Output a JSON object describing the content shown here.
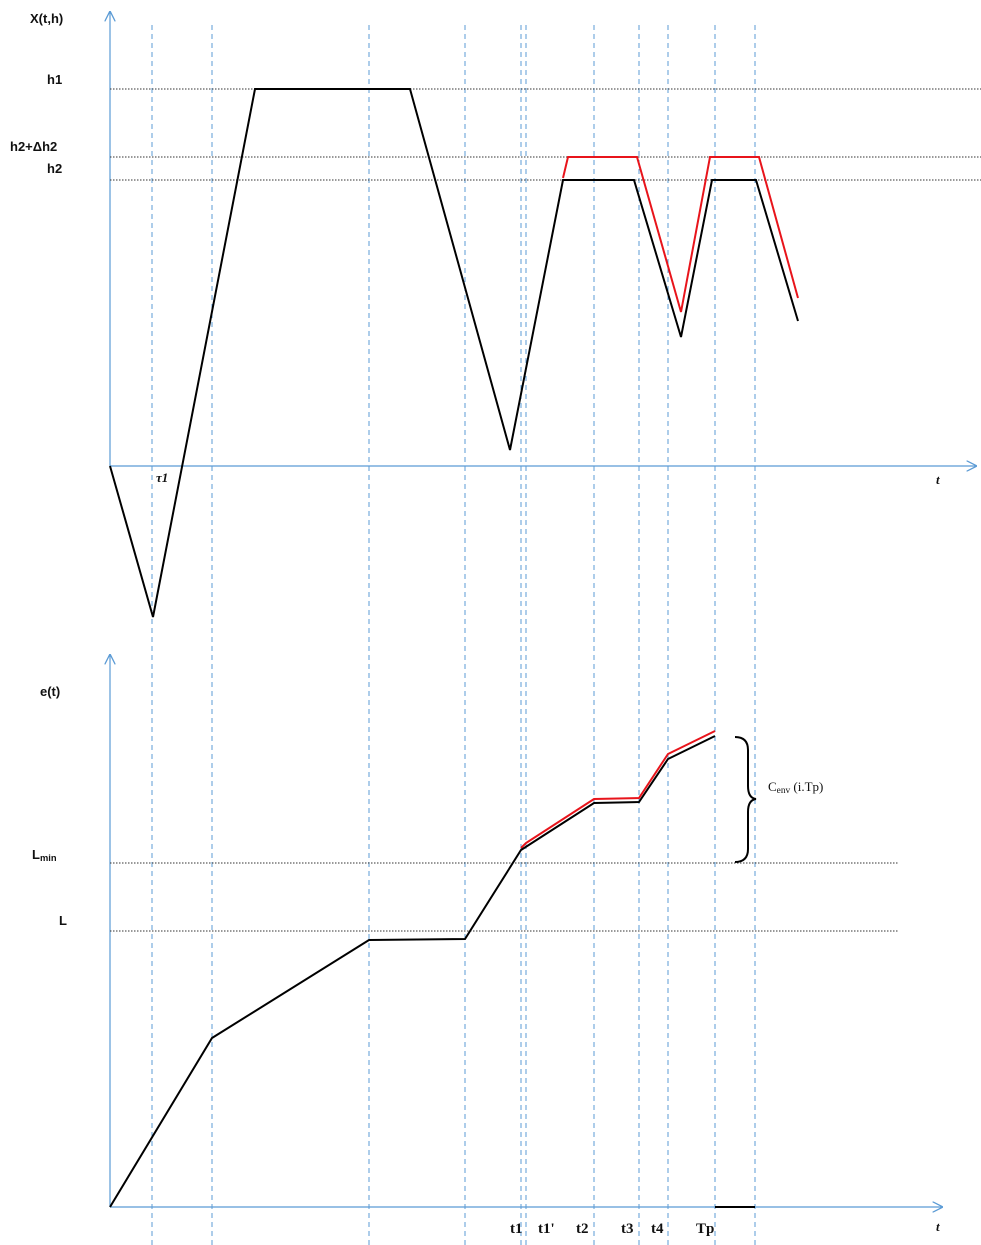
{
  "top_plot": {
    "y_label": "X(t,h)",
    "x_label": "t",
    "level_labels": {
      "h1": "h1",
      "h2_plus": "h2+Δh2",
      "h2": "h2"
    },
    "tau_label": "τ1"
  },
  "bottom_plot": {
    "y_label": "e(t)",
    "x_label": "t",
    "level_labels": {
      "lmin": "Lmin",
      "l": "L"
    },
    "envelope_label": "Cenv (i.Tp)",
    "time_labels": [
      "t1",
      "t1'",
      "t2",
      "t3",
      "t4",
      "Tp"
    ]
  },
  "colors": {
    "axis": "#5b9bd5",
    "guide": "#5b9bd5",
    "curve": "#000000",
    "curve_alt": "#e8141b",
    "level_line": "#333333"
  }
}
